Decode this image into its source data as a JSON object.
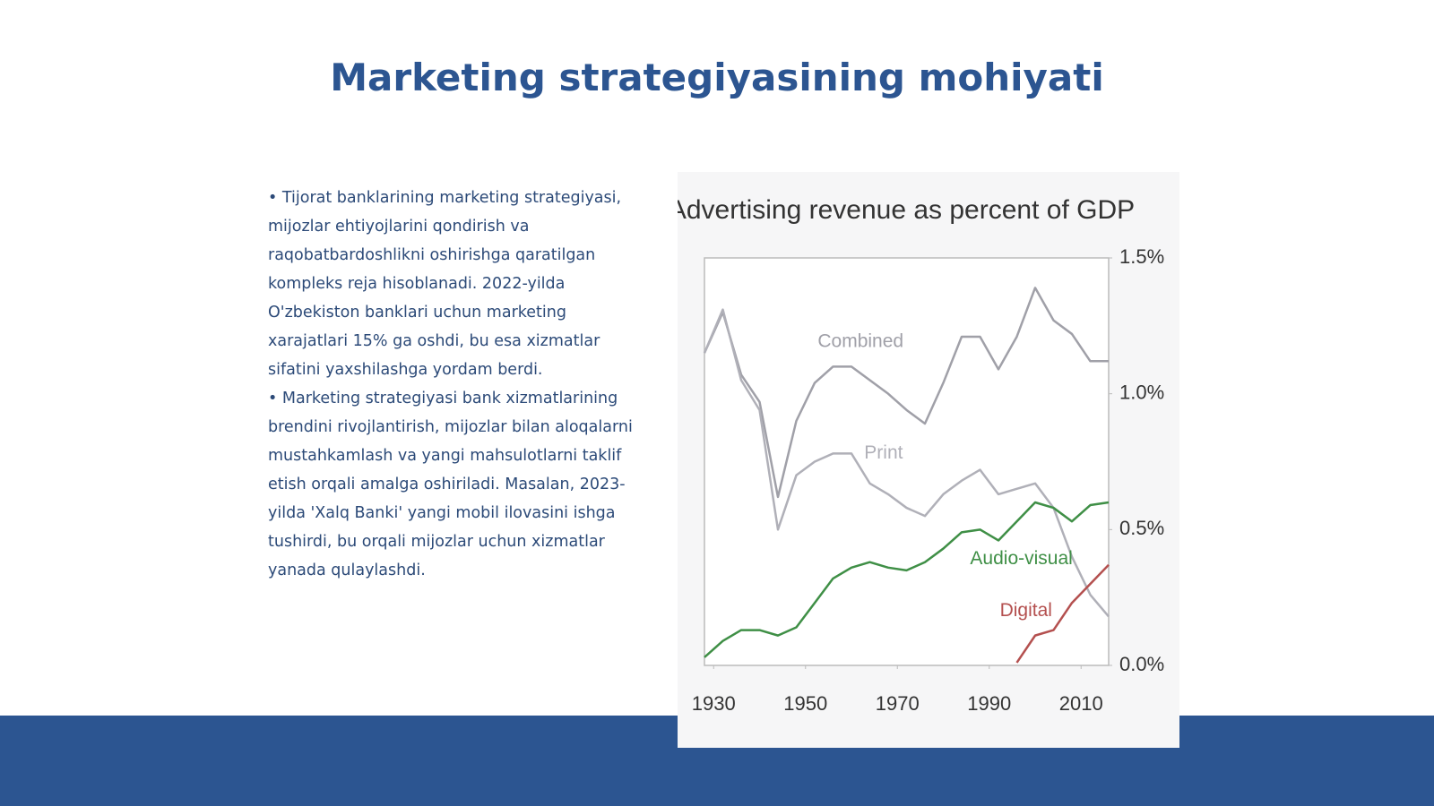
{
  "slide": {
    "title": "Marketing strategiyasining mohiyati",
    "bullets": [
      "• Tijorat banklarining marketing strategiyasi, mijozlar ehtiyojlarini qondirish va raqobatbardoshlikni oshirishga qaratilgan kompleks reja hisoblanadi. 2022-yilda O'zbekiston banklari uchun marketing xarajatlari 15% ga oshdi, bu esa xizmatlar sifatini yaxshilashga yordam berdi.",
      "• Marketing strategiyasi bank xizmatlarining brendini rivojlantirish, mijozlar bilan aloqalarni mustahkamlash va yangi mahsulotlarni taklif etish orqali amalga oshiriladi. Masalan, 2023-yilda 'Xalq Banki' yangi mobil ilovasini ishga tushirdi, bu orqali mijozlar uchun xizmatlar yanada qulaylashdi."
    ]
  },
  "chart_data": {
    "type": "line",
    "title": "Advertising revenue as percent of GDP",
    "x": [
      1928,
      1932,
      1936,
      1940,
      1944,
      1948,
      1952,
      1956,
      1960,
      1964,
      1968,
      1972,
      1976,
      1980,
      1984,
      1988,
      1992,
      1996,
      2000,
      2004,
      2008,
      2012,
      2016
    ],
    "xlim": [
      1928,
      2016
    ],
    "xticks": [
      1930,
      1950,
      1970,
      1990,
      2010
    ],
    "ylim": [
      0,
      1.5
    ],
    "yticks": [
      {
        "value": 0,
        "label": "0.0%"
      },
      {
        "value": 0.5,
        "label": "0.5%"
      },
      {
        "value": 1.0,
        "label": "1.0%"
      },
      {
        "value": 1.5,
        "label": "1.5%"
      }
    ],
    "series": [
      {
        "name": "Combined",
        "color": "#a0a0a8",
        "values": [
          1.15,
          1.3,
          1.07,
          0.97,
          0.62,
          0.9,
          1.04,
          1.1,
          1.1,
          1.05,
          1.0,
          0.94,
          0.89,
          1.04,
          1.21,
          1.21,
          1.09,
          1.21,
          1.39,
          1.27,
          1.22,
          1.12,
          1.12
        ]
      },
      {
        "name": "Print",
        "color": "#b0b0b8",
        "values": [
          1.15,
          1.31,
          1.05,
          0.94,
          0.5,
          0.7,
          0.75,
          0.78,
          0.78,
          0.67,
          0.63,
          0.58,
          0.55,
          0.63,
          0.68,
          0.72,
          0.63,
          0.65,
          0.67,
          0.58,
          0.4,
          0.26,
          0.18
        ]
      },
      {
        "name": "Audio-visual",
        "color": "#3f8f46",
        "values": [
          0.03,
          0.09,
          0.13,
          0.13,
          0.11,
          0.14,
          0.23,
          0.32,
          0.36,
          0.38,
          0.36,
          0.35,
          0.38,
          0.43,
          0.49,
          0.5,
          0.46,
          0.53,
          0.6,
          0.58,
          0.53,
          0.59,
          0.6
        ]
      },
      {
        "name": "Digital",
        "color": "#b4504f",
        "values": [
          null,
          null,
          null,
          null,
          null,
          null,
          null,
          null,
          null,
          null,
          null,
          null,
          null,
          null,
          null,
          null,
          null,
          0.01,
          0.11,
          0.13,
          0.23,
          0.3,
          0.37
        ]
      }
    ]
  }
}
